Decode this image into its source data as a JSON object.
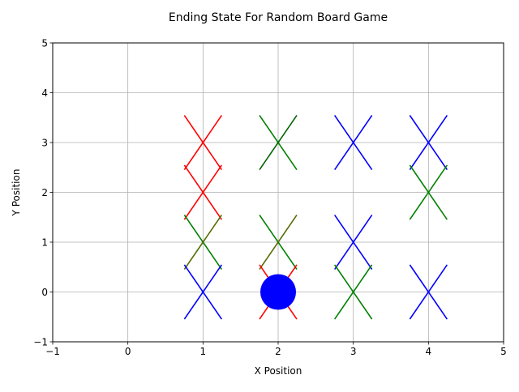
{
  "chart_data": {
    "type": "scatter",
    "title": "Ending State For Random Board Game",
    "xlabel": "X Position",
    "ylabel": "Y Position",
    "xlim": [
      -1,
      5
    ],
    "ylim": [
      -1,
      5
    ],
    "xticks": [
      -1,
      0,
      1,
      2,
      3,
      4,
      5
    ],
    "yticks": [
      -1,
      0,
      1,
      2,
      3,
      4,
      5
    ],
    "xtick_labels": [
      "−1",
      "0",
      "1",
      "2",
      "3",
      "4",
      "5"
    ],
    "ytick_labels": [
      "−1",
      "0",
      "1",
      "2",
      "3",
      "4",
      "5"
    ],
    "grid": true,
    "legend": false,
    "x_markers": [
      {
        "x": 1,
        "y": 3,
        "colors": [
          "#ff0000"
        ]
      },
      {
        "x": 2,
        "y": 3,
        "colors": [
          "#008000",
          "#006400"
        ]
      },
      {
        "x": 3,
        "y": 3,
        "colors": [
          "#0000ff"
        ]
      },
      {
        "x": 4,
        "y": 3,
        "colors": [
          "#0000ff"
        ]
      },
      {
        "x": 1,
        "y": 2,
        "colors": [
          "#ff0000"
        ]
      },
      {
        "x": 4,
        "y": 2,
        "colors": [
          "#008000"
        ]
      },
      {
        "x": 1,
        "y": 1,
        "colors": [
          "#008000",
          "#556b00"
        ]
      },
      {
        "x": 2,
        "y": 1,
        "colors": [
          "#008000",
          "#556b00"
        ]
      },
      {
        "x": 3,
        "y": 1,
        "colors": [
          "#0000ff"
        ]
      },
      {
        "x": 1,
        "y": 0,
        "colors": [
          "#0000ff"
        ]
      },
      {
        "x": 2,
        "y": 0,
        "colors": [
          "#ff0000"
        ]
      },
      {
        "x": 3,
        "y": 0,
        "colors": [
          "#008000"
        ]
      },
      {
        "x": 4,
        "y": 0,
        "colors": [
          "#0000ff"
        ]
      }
    ],
    "circle_markers": [
      {
        "x": 2,
        "y": 0,
        "color": "#0000ff"
      }
    ],
    "colors": {
      "grid": "#b0b0b0",
      "axes": "#000000",
      "background": "#ffffff"
    }
  }
}
